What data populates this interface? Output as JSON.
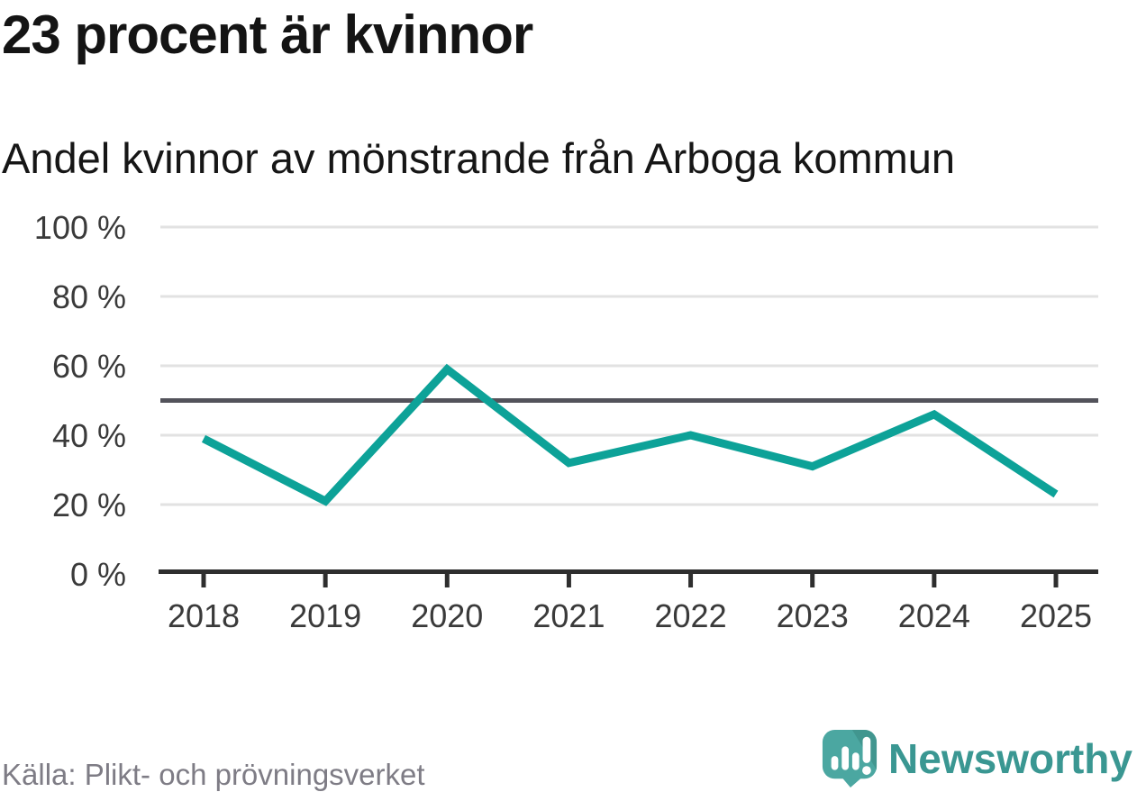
{
  "title": "23 procent är kvinnor",
  "subtitle": "Andel kvinnor av mönstrande från Arboga kommun",
  "source": "Källa: Plikt- och prövningsverket",
  "logo": {
    "name": "Newsworthy",
    "icon": "newsworthy-speech-bubble-bar-chart-icon"
  },
  "colors": {
    "line": "#0da298",
    "grid": "#e2e2e2",
    "reference_line": "#53535b",
    "axis": "#2e2e2e",
    "tick_label": "#3a3a3a",
    "title_text": "#141414",
    "source_text": "#7e7c85",
    "logo_mark": "#4ba7a1",
    "logo_mark_shade": "#41968f",
    "logo_text": "#3a9792"
  },
  "chart_data": {
    "type": "line",
    "title": "23 procent är kvinnor",
    "subtitle": "Andel kvinnor av mönstrande från Arboga kommun",
    "x": [
      "2018",
      "2019",
      "2020",
      "2021",
      "2022",
      "2023",
      "2024",
      "2025"
    ],
    "series": [
      {
        "name": "Andel kvinnor av mönstrande",
        "values": [
          39,
          21,
          59,
          32,
          40,
          31,
          46,
          23
        ]
      }
    ],
    "ylim": [
      0,
      100
    ],
    "yticks": [
      {
        "value": 100,
        "label": "100 %"
      },
      {
        "value": 80,
        "label": "80 %"
      },
      {
        "value": 60,
        "label": "60 %"
      },
      {
        "value": 40,
        "label": "40 %"
      },
      {
        "value": 20,
        "label": "20 %"
      },
      {
        "value": 0,
        "label": "0 %"
      }
    ],
    "reference_line": 50,
    "grid": true,
    "legend": "none"
  }
}
